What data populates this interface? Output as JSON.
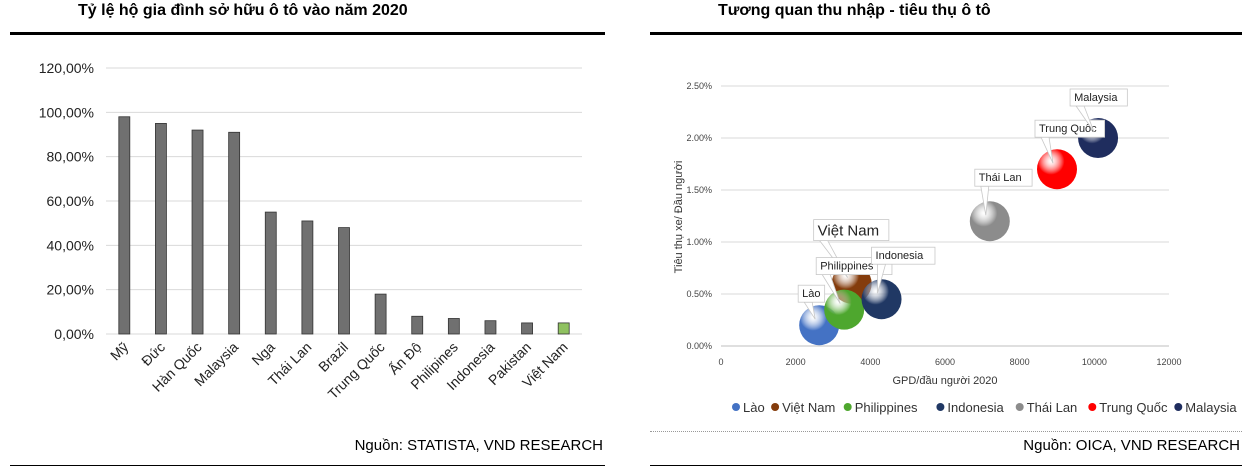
{
  "left_panel": {
    "title": "Tỷ lệ hộ gia đình sở hữu ô tô vào năm 2020",
    "source": "Nguồn:  STATISTA, VND RESEARCH"
  },
  "right_panel": {
    "title": "Tương quan thu nhập - tiêu thụ ô tô",
    "source": "Nguồn: OICA, VND RESEARCH"
  },
  "colors": {
    "bar": "#707070",
    "bar_highlight": "#8fc160",
    "grid": "#d9d9d9"
  },
  "chart_data": [
    {
      "type": "bar",
      "title": "Tỷ lệ hộ gia đình sở hữu ô tô vào năm 2020",
      "categories": [
        "Mỹ",
        "Đức",
        "Hàn Quốc",
        "Malaysia",
        "Nga",
        "Thái Lan",
        "Brazil",
        "Trung Quốc",
        "Ấn Độ",
        "Philipines",
        "Indonesia",
        "Pakistan",
        "Việt Nam"
      ],
      "values": [
        98,
        95,
        92,
        91,
        55,
        51,
        48,
        18,
        8,
        7,
        6,
        5,
        5
      ],
      "highlight": "Việt Nam",
      "ylim": [
        0,
        120
      ],
      "yticks": [
        "0,00%",
        "20,00%",
        "40,00%",
        "60,00%",
        "80,00%",
        "100,00%",
        "120,00%"
      ],
      "xlabel": "",
      "ylabel": "",
      "grid": true
    },
    {
      "type": "scatter",
      "title": "Tương quan thu nhập - tiêu thụ ô tô",
      "xlabel": "GPD/đầu người 2020",
      "ylabel": "Tiêu thụ xe/ Đầu người",
      "xlim": [
        0,
        12000
      ],
      "ylim": [
        0,
        2.5
      ],
      "xticks": [
        "0",
        "2000",
        "4000",
        "6000",
        "8000",
        "10000",
        "12000"
      ],
      "yticks": [
        "0.00%",
        "0.50%",
        "1.00%",
        "1.50%",
        "2.00%",
        "2.50%"
      ],
      "grid": true,
      "legend_position": "bottom",
      "series": [
        {
          "name": "Lào",
          "x": 2630,
          "y": 0.2,
          "color": "#4472c4",
          "label": "Lào"
        },
        {
          "name": "Việt Nam",
          "x": 3500,
          "y": 0.6,
          "color": "#843c0c",
          "label": "Việt Nam"
        },
        {
          "name": "Philippines",
          "x": 3300,
          "y": 0.35,
          "color": "#4ea72e",
          "label": "Philippines"
        },
        {
          "name": "Indonesia",
          "x": 4300,
          "y": 0.45,
          "color": "#203864",
          "label": "Indonesia"
        },
        {
          "name": "Thái Lan",
          "x": 7200,
          "y": 1.2,
          "color": "#8c8c8c",
          "label": "Thái Lan"
        },
        {
          "name": "Trung Quốc",
          "x": 9000,
          "y": 1.7,
          "color": "#ff0000",
          "label": "Trung Quốc"
        },
        {
          "name": "Malaysia",
          "x": 10100,
          "y": 2.0,
          "color": "#1f2d5e",
          "label": "Malaysia"
        }
      ]
    }
  ]
}
